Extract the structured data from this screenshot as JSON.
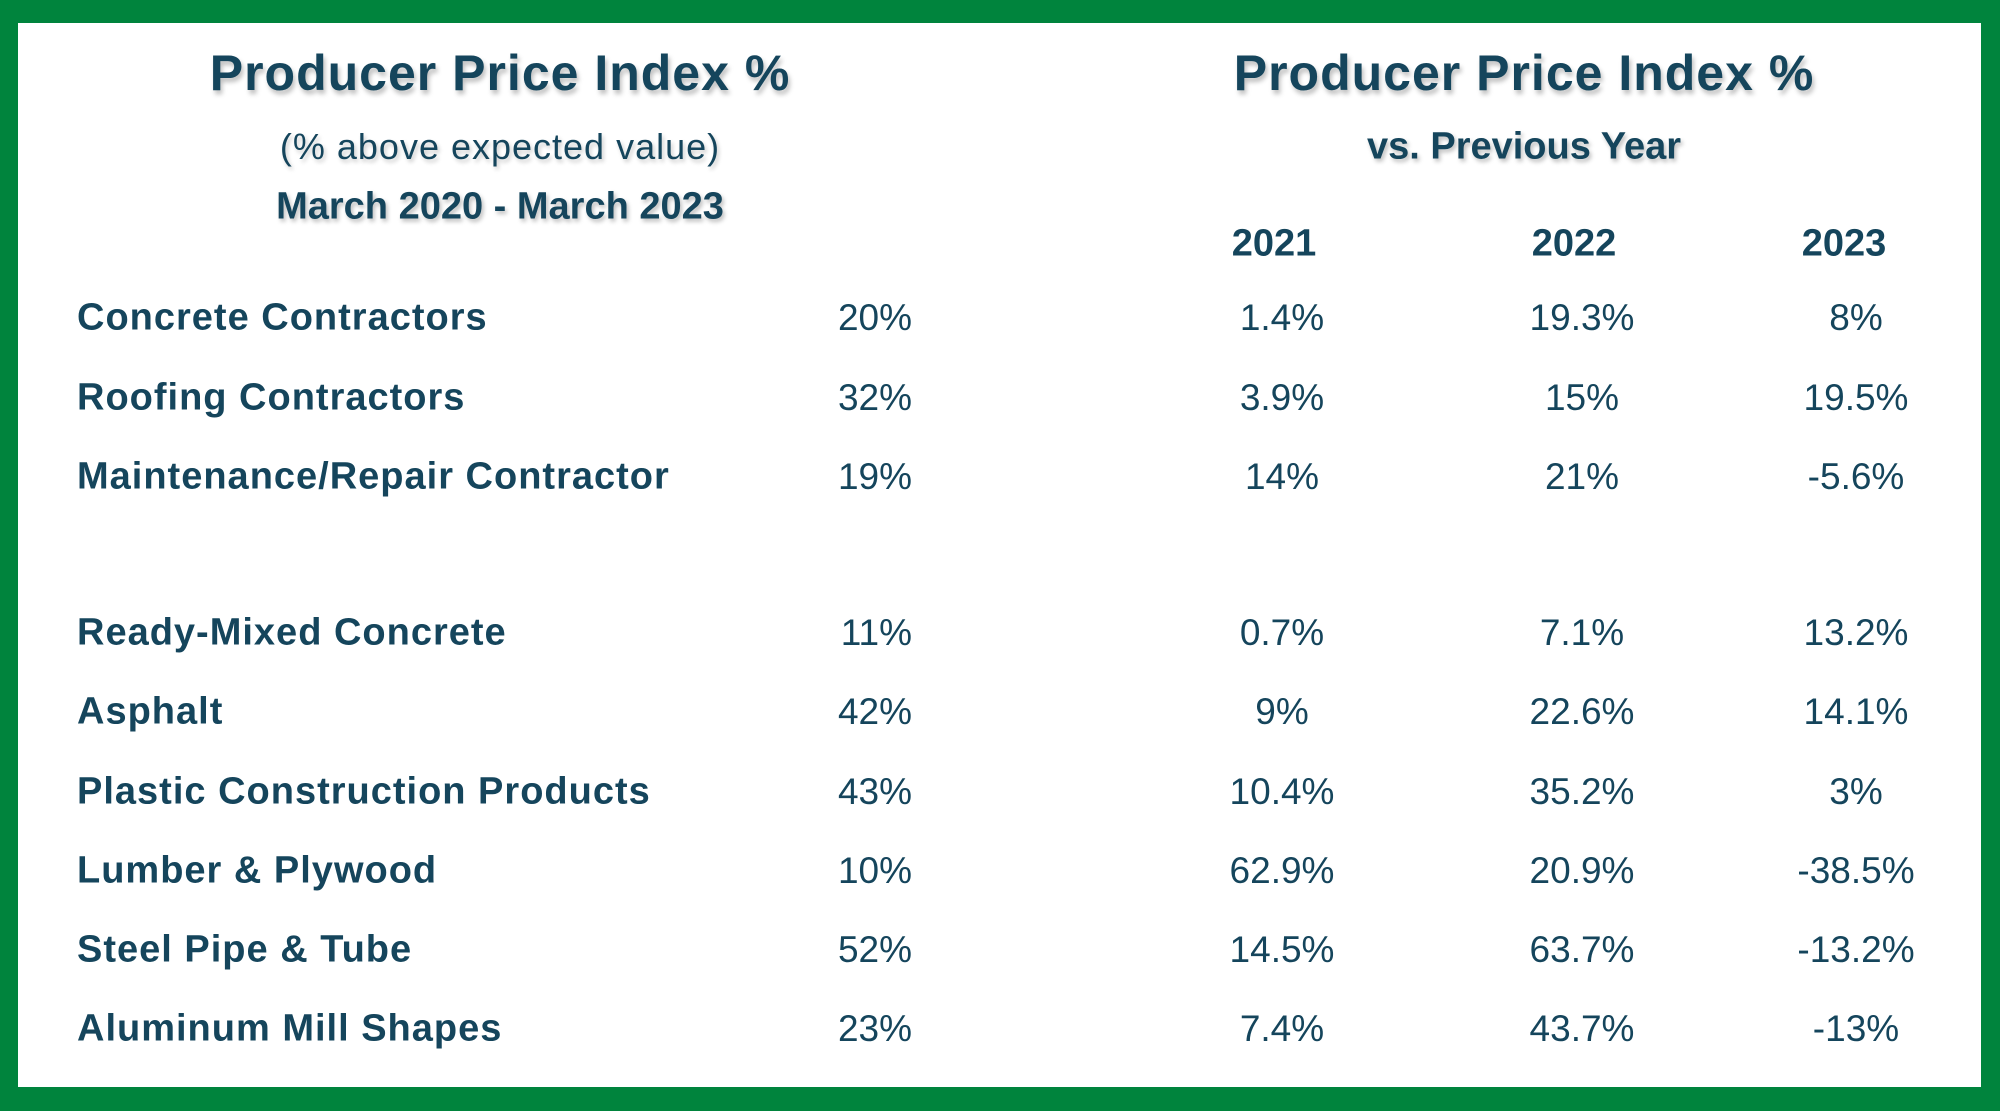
{
  "colors": {
    "border": "#00843D",
    "text": "#15455c"
  },
  "left": {
    "title": "Producer Price Index %",
    "subtitle": "(% above expected value)",
    "period": "March 2020 - March 2023"
  },
  "right": {
    "title": "Producer Price Index %",
    "subtitle": "vs. Previous Year",
    "years": [
      "2021",
      "2022",
      "2023"
    ]
  },
  "rows": [
    {
      "label": "Concrete Contractors",
      "value": "20%",
      "y2021": "1.4%",
      "y2022": "19.3%",
      "y2023": "8%"
    },
    {
      "label": "Roofing Contractors",
      "value": "32%",
      "y2021": "3.9%",
      "y2022": "15%",
      "y2023": "19.5%"
    },
    {
      "label": "Maintenance/Repair Contractor",
      "value": "19%",
      "y2021": "14%",
      "y2022": "21%",
      "y2023": "-5.6%"
    },
    {
      "label": "Ready-Mixed Concrete",
      "value": "11%",
      "y2021": "0.7%",
      "y2022": "7.1%",
      "y2023": "13.2%"
    },
    {
      "label": "Asphalt",
      "value": "42%",
      "y2021": "9%",
      "y2022": "22.6%",
      "y2023": "14.1%"
    },
    {
      "label": "Plastic Construction Products",
      "value": "43%",
      "y2021": "10.4%",
      "y2022": "35.2%",
      "y2023": "3%"
    },
    {
      "label": "Lumber & Plywood",
      "value": "10%",
      "y2021": "62.9%",
      "y2022": "20.9%",
      "y2023": "-38.5%"
    },
    {
      "label": "Steel Pipe & Tube",
      "value": "52%",
      "y2021": "14.5%",
      "y2022": "63.7%",
      "y2023": "-13.2%"
    },
    {
      "label": "Aluminum Mill Shapes",
      "value": "23%",
      "y2021": "7.4%",
      "y2022": "43.7%",
      "y2023": "-13%"
    }
  ]
}
